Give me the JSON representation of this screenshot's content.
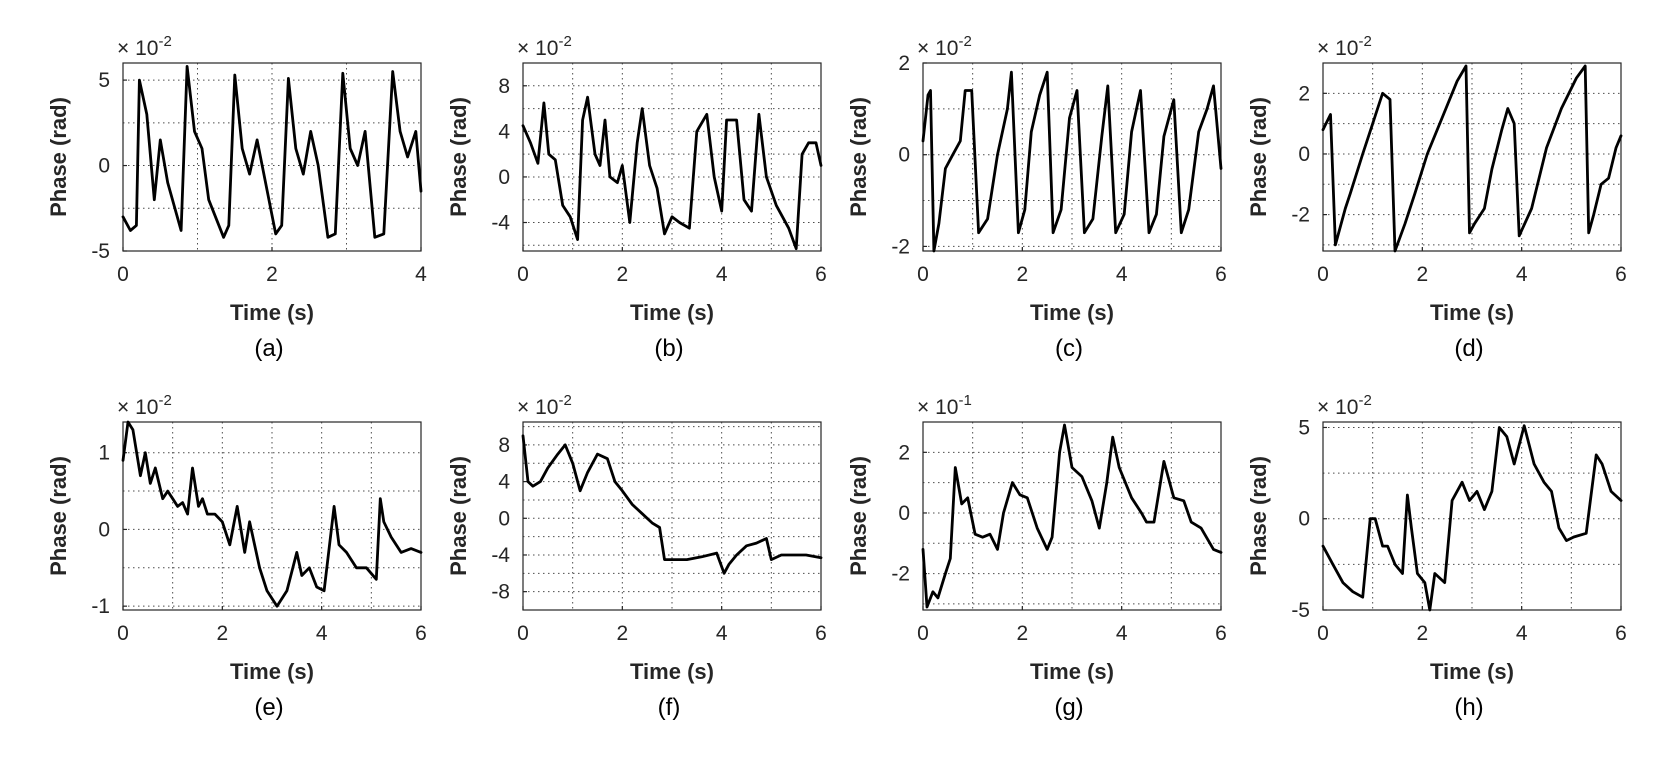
{
  "chart_data": [
    {
      "type": "line",
      "panel_label": "(a)",
      "xlabel": "Time (s)",
      "ylabel": "Phase (rad)",
      "multiplier": "× 10",
      "exponent": "-2",
      "xlim": [
        0,
        4
      ],
      "ylim": [
        -5,
        6
      ],
      "xticks": [
        0,
        2,
        4
      ],
      "yticks": [
        -5,
        0,
        5
      ],
      "xtick_labels": [
        "0",
        "2",
        "4"
      ],
      "ytick_labels": [
        "-5",
        "0",
        "5"
      ],
      "grid": true,
      "series": [
        {
          "x": [
            0,
            0.1,
            0.18,
            0.22,
            0.32,
            0.42,
            0.5,
            0.6,
            0.78,
            0.86,
            0.96,
            1.06,
            1.15,
            1.35,
            1.42,
            1.5,
            1.6,
            1.7,
            1.8,
            2.05,
            2.13,
            2.22,
            2.32,
            2.42,
            2.52,
            2.62,
            2.75,
            2.85,
            2.95,
            3.05,
            3.15,
            3.25,
            3.38,
            3.5,
            3.62,
            3.72,
            3.82,
            3.93,
            4.0
          ],
          "y": [
            -3,
            -3.8,
            -3.5,
            5,
            3,
            -2,
            1.5,
            -1,
            -3.8,
            5.8,
            2,
            1,
            -2,
            -4.2,
            -3.5,
            5.3,
            1,
            -0.5,
            1.5,
            -4,
            -3.5,
            5.1,
            1,
            -0.5,
            2,
            0,
            -4.2,
            -4,
            5.4,
            1,
            0,
            2,
            -4.2,
            -4,
            5.5,
            2,
            0.5,
            2,
            -1.5
          ]
        }
      ]
    },
    {
      "type": "line",
      "panel_label": "(b)",
      "xlabel": "Time (s)",
      "ylabel": "Phase (rad)",
      "multiplier": "× 10",
      "exponent": "-2",
      "xlim": [
        0,
        6
      ],
      "ylim": [
        -6.5,
        10
      ],
      "xticks": [
        0,
        2,
        4,
        6
      ],
      "yticks": [
        -4,
        0,
        4,
        8
      ],
      "xtick_labels": [
        "0",
        "2",
        "4",
        "6"
      ],
      "ytick_labels": [
        "-4",
        "0",
        "4",
        "8"
      ],
      "grid": true,
      "series": [
        {
          "x": [
            0,
            0.15,
            0.3,
            0.42,
            0.52,
            0.65,
            0.8,
            0.95,
            1.1,
            1.2,
            1.3,
            1.45,
            1.55,
            1.65,
            1.75,
            1.9,
            2,
            2.15,
            2.3,
            2.4,
            2.55,
            2.7,
            2.85,
            3.0,
            3.15,
            3.35,
            3.5,
            3.7,
            3.85,
            4.0,
            4.1,
            4.3,
            4.45,
            4.6,
            4.75,
            4.9,
            5.1,
            5.35,
            5.5,
            5.62,
            5.75,
            5.9,
            6.0
          ],
          "y": [
            4.5,
            3,
            1.2,
            6.5,
            2,
            1.5,
            -2.5,
            -3.5,
            -5.5,
            5,
            7,
            2,
            1,
            5,
            0,
            -0.5,
            1,
            -4,
            3,
            6,
            1,
            -1,
            -5,
            -3.5,
            -4,
            -4.5,
            4,
            5.5,
            0,
            -3,
            5,
            5,
            -2,
            -3,
            5.5,
            0,
            -2.5,
            -4.5,
            -6.3,
            2,
            3,
            3,
            1
          ]
        }
      ]
    },
    {
      "type": "line",
      "panel_label": "(c)",
      "xlabel": "Time (s)",
      "ylabel": "Phase (rad)",
      "multiplier": "× 10",
      "exponent": "-2",
      "xlim": [
        0,
        6
      ],
      "ylim": [
        -2.1,
        2
      ],
      "xticks": [
        0,
        2,
        4,
        6
      ],
      "yticks": [
        -2,
        0,
        2
      ],
      "xtick_labels": [
        "0",
        "2",
        "4",
        "6"
      ],
      "ytick_labels": [
        "-2",
        "0",
        "2"
      ],
      "grid": true,
      "series": [
        {
          "x": [
            0,
            0.1,
            0.15,
            0.22,
            0.32,
            0.45,
            0.6,
            0.75,
            0.85,
            0.98,
            1.12,
            1.3,
            1.5,
            1.7,
            1.78,
            1.92,
            2.05,
            2.18,
            2.35,
            2.5,
            2.62,
            2.78,
            2.95,
            3.1,
            3.25,
            3.42,
            3.6,
            3.72,
            3.88,
            4.05,
            4.2,
            4.38,
            4.55,
            4.7,
            4.85,
            5.05,
            5.2,
            5.35,
            5.55,
            5.72,
            5.85,
            6.0
          ],
          "y": [
            0.3,
            1.3,
            1.4,
            -2.1,
            -1.5,
            -0.3,
            0,
            0.3,
            1.4,
            1.4,
            -1.7,
            -1.4,
            0,
            1,
            1.8,
            -1.7,
            -1.2,
            0.5,
            1.3,
            1.8,
            -1.7,
            -1.2,
            0.8,
            1.4,
            -1.7,
            -1.4,
            0.4,
            1.5,
            -1.7,
            -1.3,
            0.5,
            1.4,
            -1.7,
            -1.3,
            0.4,
            1.2,
            -1.7,
            -1.2,
            0.5,
            1.0,
            1.5,
            -0.3
          ]
        }
      ]
    },
    {
      "type": "line",
      "panel_label": "(d)",
      "xlabel": "Time (s)",
      "ylabel": "Phase (rad)",
      "multiplier": "× 10",
      "exponent": "-2",
      "xlim": [
        0,
        6
      ],
      "ylim": [
        -3.2,
        3
      ],
      "xticks": [
        0,
        2,
        4,
        6
      ],
      "yticks": [
        -2,
        0,
        2
      ],
      "xtick_labels": [
        "0",
        "2",
        "4",
        "6"
      ],
      "ytick_labels": [
        "-2",
        "0",
        "2"
      ],
      "grid": true,
      "series": [
        {
          "x": [
            0,
            0.15,
            0.25,
            0.45,
            0.55,
            0.8,
            1.0,
            1.1,
            1.2,
            1.35,
            1.45,
            1.65,
            1.85,
            2.1,
            2.4,
            2.7,
            2.88,
            2.95,
            3.05,
            3.25,
            3.4,
            3.6,
            3.72,
            3.85,
            3.95,
            4.2,
            4.5,
            4.8,
            5.1,
            5.28,
            5.35,
            5.45,
            5.6,
            5.75,
            5.9,
            6.0
          ],
          "y": [
            0.8,
            1.3,
            -3,
            -1.8,
            -1.3,
            0,
            1,
            1.5,
            2,
            1.8,
            -3.2,
            -2.3,
            -1.3,
            0,
            1.2,
            2.4,
            2.9,
            -2.6,
            -2.3,
            -1.8,
            -0.5,
            0.8,
            1.5,
            1.0,
            -2.7,
            -1.8,
            0.2,
            1.5,
            2.5,
            2.9,
            -2.6,
            -2.0,
            -1.0,
            -0.8,
            0.2,
            0.6
          ]
        }
      ]
    },
    {
      "type": "line",
      "panel_label": "(e)",
      "xlabel": "Time (s)",
      "ylabel": "Phase (rad)",
      "multiplier": "× 10",
      "exponent": "-2",
      "xlim": [
        0,
        6
      ],
      "ylim": [
        -1.05,
        1.4
      ],
      "xticks": [
        0,
        2,
        4,
        6
      ],
      "yticks": [
        -1,
        0,
        1
      ],
      "xtick_labels": [
        "0",
        "2",
        "4",
        "6"
      ],
      "ytick_labels": [
        "-1",
        "0",
        "1"
      ],
      "grid": true,
      "series": [
        {
          "x": [
            0,
            0.1,
            0.2,
            0.35,
            0.45,
            0.55,
            0.65,
            0.8,
            0.9,
            1.0,
            1.1,
            1.2,
            1.3,
            1.4,
            1.52,
            1.6,
            1.7,
            1.85,
            2.0,
            2.15,
            2.3,
            2.45,
            2.55,
            2.65,
            2.75,
            2.9,
            3.1,
            3.3,
            3.5,
            3.6,
            3.75,
            3.9,
            4.05,
            4.25,
            4.35,
            4.5,
            4.7,
            4.9,
            5.1,
            5.18,
            5.25,
            5.4,
            5.6,
            5.8,
            6.0
          ],
          "y": [
            0.9,
            1.4,
            1.3,
            0.7,
            1.0,
            0.6,
            0.8,
            0.4,
            0.5,
            0.4,
            0.3,
            0.35,
            0.2,
            0.8,
            0.3,
            0.4,
            0.2,
            0.2,
            0.1,
            -0.2,
            0.3,
            -0.3,
            0.1,
            -0.2,
            -0.5,
            -0.8,
            -1.0,
            -0.8,
            -0.3,
            -0.6,
            -0.5,
            -0.75,
            -0.8,
            0.3,
            -0.2,
            -0.3,
            -0.5,
            -0.5,
            -0.65,
            0.4,
            0.1,
            -0.1,
            -0.3,
            -0.25,
            -0.3
          ]
        }
      ]
    },
    {
      "type": "line",
      "panel_label": "(f)",
      "xlabel": "Time (s)",
      "ylabel": "Phase (rad)",
      "multiplier": "× 10",
      "exponent": "-2",
      "xlim": [
        0,
        6
      ],
      "ylim": [
        -10,
        10.5
      ],
      "xticks": [
        0,
        2,
        4,
        6
      ],
      "yticks": [
        -8,
        -4,
        0,
        4,
        8
      ],
      "xtick_labels": [
        "0",
        "2",
        "4",
        "6"
      ],
      "ytick_labels": [
        "-8",
        "-4",
        "0",
        "4",
        "8"
      ],
      "grid": true,
      "series": [
        {
          "x": [
            0,
            0.1,
            0.2,
            0.35,
            0.5,
            0.7,
            0.85,
            1.0,
            1.15,
            1.3,
            1.5,
            1.7,
            1.85,
            2.0,
            2.2,
            2.4,
            2.6,
            2.75,
            2.85,
            3.0,
            3.3,
            3.6,
            3.9,
            4.05,
            4.15,
            4.3,
            4.5,
            4.7,
            4.9,
            5.0,
            5.2,
            5.4,
            5.7,
            6.0
          ],
          "y": [
            9,
            4,
            3.5,
            4,
            5.5,
            7,
            8,
            6,
            3,
            5,
            7,
            6.5,
            4,
            3,
            1.5,
            0.5,
            -0.5,
            -1,
            -4.5,
            -4.5,
            -4.5,
            -4.2,
            -3.8,
            -6,
            -5,
            -4,
            -3,
            -2.7,
            -2.2,
            -4.5,
            -4,
            -4,
            -4,
            -4.3
          ]
        }
      ]
    },
    {
      "type": "line",
      "panel_label": "(g)",
      "xlabel": "Time (s)",
      "ylabel": "Phase (rad)",
      "multiplier": "× 10",
      "exponent": "-1",
      "xlim": [
        0,
        6
      ],
      "ylim": [
        -3.2,
        3
      ],
      "xticks": [
        0,
        2,
        4,
        6
      ],
      "yticks": [
        -2,
        0,
        2
      ],
      "xtick_labels": [
        "0",
        "2",
        "4",
        "6"
      ],
      "ytick_labels": [
        "-2",
        "0",
        "2"
      ],
      "grid": true,
      "series": [
        {
          "x": [
            0,
            0.08,
            0.2,
            0.3,
            0.45,
            0.55,
            0.65,
            0.78,
            0.9,
            1.05,
            1.2,
            1.35,
            1.5,
            1.62,
            1.8,
            1.95,
            2.1,
            2.3,
            2.5,
            2.6,
            2.75,
            2.85,
            3.0,
            3.2,
            3.4,
            3.55,
            3.7,
            3.82,
            3.95,
            4.2,
            4.4,
            4.5,
            4.65,
            4.85,
            5.05,
            5.25,
            5.4,
            5.6,
            5.85,
            6.0
          ],
          "y": [
            -1.2,
            -3.1,
            -2.6,
            -2.8,
            -2.0,
            -1.5,
            1.5,
            0.3,
            0.5,
            -0.7,
            -0.8,
            -0.7,
            -1.2,
            0.0,
            1.0,
            0.6,
            0.5,
            -0.5,
            -1.2,
            -0.8,
            2.0,
            2.9,
            1.5,
            1.2,
            0.4,
            -0.5,
            1.0,
            2.5,
            1.5,
            0.5,
            0.0,
            -0.3,
            -0.3,
            1.7,
            0.5,
            0.4,
            -0.3,
            -0.5,
            -1.2,
            -1.3
          ]
        }
      ]
    },
    {
      "type": "line",
      "panel_label": "(h)",
      "xlabel": "Time (s)",
      "ylabel": "Phase (rad)",
      "multiplier": "× 10",
      "exponent": "-2",
      "xlim": [
        0,
        6
      ],
      "ylim": [
        -5,
        5.3
      ],
      "xticks": [
        0,
        2,
        4,
        6
      ],
      "yticks": [
        -5,
        0,
        5
      ],
      "xtick_labels": [
        "0",
        "2",
        "4",
        "6"
      ],
      "ytick_labels": [
        "-5",
        "0",
        "5"
      ],
      "grid": true,
      "series": [
        {
          "x": [
            0,
            0.2,
            0.4,
            0.6,
            0.8,
            0.95,
            1.05,
            1.2,
            1.3,
            1.45,
            1.6,
            1.7,
            1.78,
            1.9,
            2.05,
            2.15,
            2.25,
            2.45,
            2.6,
            2.8,
            2.95,
            3.1,
            3.25,
            3.4,
            3.55,
            3.7,
            3.85,
            4.05,
            4.25,
            4.45,
            4.6,
            4.75,
            4.9,
            5.05,
            5.3,
            5.5,
            5.62,
            5.8,
            6.0
          ],
          "y": [
            -1.5,
            -2.5,
            -3.5,
            -4,
            -4.3,
            0,
            0,
            -1.5,
            -1.5,
            -2.5,
            -3,
            1.3,
            -0.5,
            -3,
            -3.5,
            -5,
            -3,
            -3.5,
            1,
            2,
            1,
            1.5,
            0.5,
            1.5,
            5,
            4.5,
            3,
            5.1,
            3,
            2,
            1.5,
            -0.5,
            -1.2,
            -1,
            -0.8,
            3.5,
            3.0,
            1.5,
            1.0
          ]
        }
      ]
    }
  ]
}
